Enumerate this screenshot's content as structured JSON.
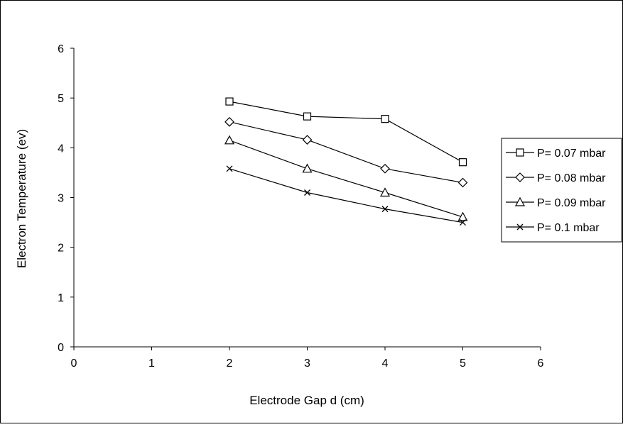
{
  "chart_data": {
    "type": "line",
    "title": "",
    "xlabel": "Electrode Gap d (cm)",
    "ylabel": "Electron Temperature (ev)",
    "xlim": [
      0,
      6
    ],
    "ylim": [
      0,
      6
    ],
    "x_ticks": [
      "0",
      "1",
      "2",
      "3",
      "4",
      "5",
      "6"
    ],
    "y_ticks": [
      "0",
      "1",
      "2",
      "3",
      "4",
      "5",
      "6"
    ],
    "grid": false,
    "legend_position": "right",
    "line_color": "#000000",
    "x": [
      2,
      3,
      4,
      5
    ],
    "series": [
      {
        "name": "P= 0.07 mbar",
        "marker": "square",
        "values": [
          4.93,
          4.63,
          4.58,
          3.71
        ]
      },
      {
        "name": "P= 0.08 mbar",
        "marker": "diamond",
        "values": [
          4.52,
          4.16,
          3.58,
          3.3
        ]
      },
      {
        "name": "P= 0.09 mbar",
        "marker": "triangle",
        "values": [
          4.15,
          3.58,
          3.1,
          2.61
        ]
      },
      {
        "name": "P= 0.1 mbar",
        "marker": "x",
        "values": [
          3.58,
          3.1,
          2.77,
          2.5
        ]
      }
    ]
  }
}
